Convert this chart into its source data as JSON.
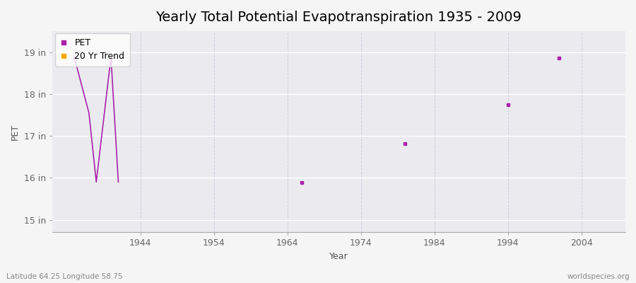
{
  "title": "Yearly Total Potential Evapotranspiration 1935 - 2009",
  "xlabel": "Year",
  "ylabel": "PET",
  "footnote_left": "Latitude 64.25 Longitude 58.75",
  "footnote_right": "worldspecies.org",
  "xlim": [
    1932,
    2010
  ],
  "ylim": [
    14.7,
    19.5
  ],
  "yticks": [
    15,
    16,
    17,
    18,
    19
  ],
  "ytick_labels": [
    "15 in",
    "16 in",
    "17 in",
    "18 in",
    "19 in"
  ],
  "xticks": [
    1944,
    1954,
    1964,
    1974,
    1984,
    1994,
    2004
  ],
  "xtick_labels": [
    "1944",
    "1954",
    "1964",
    "1974",
    "1984",
    "1994",
    "2004"
  ],
  "pet_color": "#aa22aa",
  "trend_color": "#ffaa00",
  "background_color": "#f5f5f5",
  "plot_bg_color": "#ebebef",
  "grid_color_h": "#ffffff",
  "grid_color_v": "#ccccdd",
  "connected_data": [
    [
      1935,
      18.88
    ],
    [
      1937,
      17.55
    ],
    [
      1938,
      15.9
    ],
    [
      1940,
      18.88
    ],
    [
      1941,
      15.9
    ]
  ],
  "isolated_data": [
    [
      1966,
      15.88
    ],
    [
      1980,
      16.82
    ],
    [
      1994,
      17.75
    ],
    [
      2001,
      18.85
    ]
  ],
  "legend_labels": [
    "PET",
    "20 Yr Trend"
  ],
  "title_fontsize": 14,
  "axis_label_fontsize": 9,
  "tick_fontsize": 9
}
